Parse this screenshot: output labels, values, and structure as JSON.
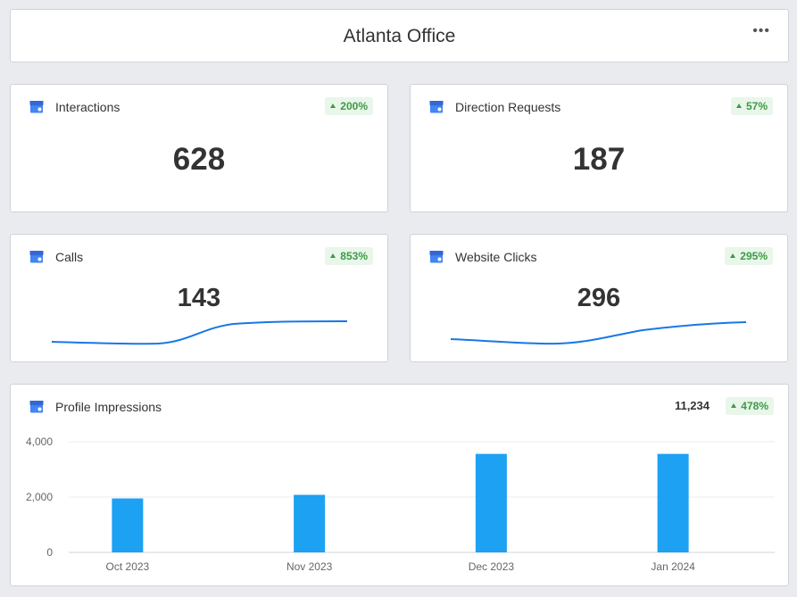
{
  "header": {
    "title": "Atlanta Office",
    "more_label": "•••"
  },
  "colors": {
    "accent_blue": "#1da1f2",
    "line_blue": "#1877e8",
    "positive_green": "#3c9b45",
    "badge_bg": "#e9f6ea"
  },
  "cards": {
    "interactions": {
      "icon": "business-profile-icon",
      "title": "Interactions",
      "change": "200%",
      "value": "628"
    },
    "direction_requests": {
      "icon": "business-profile-icon",
      "title": "Direction Requests",
      "change": "57%",
      "value": "187"
    },
    "calls": {
      "icon": "business-profile-icon",
      "title": "Calls",
      "change": "853%",
      "value": "143"
    },
    "website_clicks": {
      "icon": "business-profile-icon",
      "title": "Website Clicks",
      "change": "295%",
      "value": "296"
    },
    "profile_impressions": {
      "icon": "business-profile-icon",
      "title": "Profile Impressions",
      "total": "11,234",
      "change": "478%"
    }
  },
  "chart_data": {
    "type": "bar",
    "categories": [
      "Oct 2023",
      "Nov 2023",
      "Dec 2023",
      "Jan 2024"
    ],
    "values": [
      1950,
      2080,
      3560,
      3560
    ],
    "yticks": [
      0,
      2000,
      4000
    ],
    "ytick_labels": [
      "0",
      "2,000",
      "4,000"
    ],
    "ylim": [
      0,
      4000
    ],
    "grid": true,
    "title": "",
    "xlabel": "",
    "ylabel": ""
  }
}
